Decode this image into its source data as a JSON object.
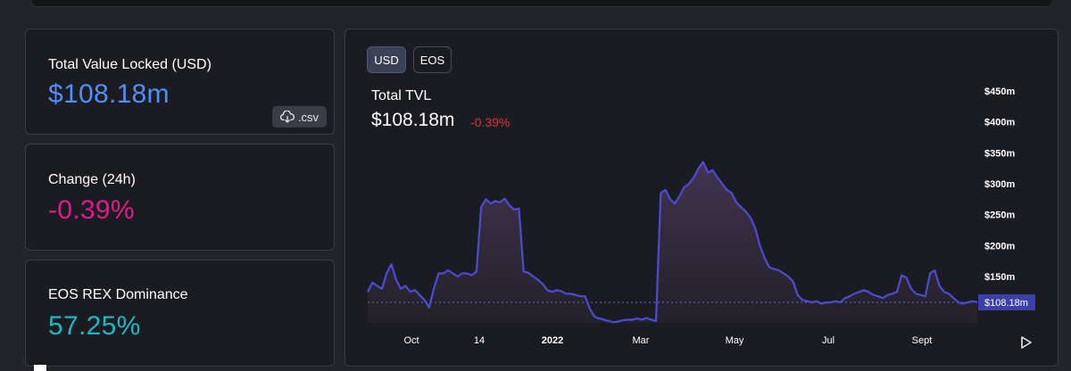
{
  "cards": {
    "tvl": {
      "label": "Total Value Locked (USD)",
      "value": "$108.18m",
      "csv_label": ".csv",
      "color": "#4f8ff7"
    },
    "change": {
      "label": "Change (24h)",
      "value": "-0.39%",
      "color": "#e11a8c"
    },
    "dominance": {
      "label": "EOS REX Dominance",
      "value": "57.25%",
      "color": "#1cb8c4"
    }
  },
  "chart_panel": {
    "toggles": [
      "USD",
      "EOS"
    ],
    "active_toggle": "USD",
    "title": "Total TVL",
    "current_value": "$108.18m",
    "change": "-0.39%",
    "current_tag": "$108.18m"
  },
  "chart_data": {
    "type": "area",
    "title": "Total TVL",
    "xlabel": "",
    "ylabel": "",
    "y_unit": "USD millions",
    "ylim": [
      70,
      480
    ],
    "y_ticks": [
      150,
      200,
      250,
      300,
      350,
      400,
      450
    ],
    "y_tick_labels": [
      "$150m",
      "$200m",
      "$250m",
      "$300m",
      "$350m",
      "$400m",
      "$450m"
    ],
    "x_tick_labels": [
      "Oct",
      "14",
      "2022",
      "Mar",
      "May",
      "Jul",
      "Sept"
    ],
    "current_value": 108.18,
    "line_color": "#4b4bd6",
    "grid": false,
    "series": [
      {
        "values": [
          125,
          140,
          135,
          130,
          155,
          170,
          145,
          130,
          135,
          125,
          128,
          120,
          112,
          100,
          130,
          155,
          155,
          160,
          155,
          150,
          155,
          155,
          152,
          158,
          262,
          275,
          268,
          272,
          270,
          276,
          265,
          258,
          260,
          158,
          156,
          150,
          145,
          138,
          128,
          125,
          128,
          126,
          122,
          122,
          120,
          118,
          118,
          98,
          85,
          82,
          80,
          78,
          76,
          77,
          79,
          80,
          80,
          82,
          80,
          83,
          80,
          78,
          285,
          290,
          275,
          268,
          280,
          295,
          300,
          310,
          325,
          335,
          318,
          322,
          310,
          300,
          290,
          285,
          270,
          262,
          255,
          245,
          228,
          200,
          180,
          165,
          162,
          160,
          155,
          150,
          142,
          120,
          112,
          110,
          108,
          110,
          106,
          108,
          108,
          110,
          108,
          115,
          118,
          122,
          125,
          128,
          125,
          120,
          118,
          115,
          120,
          122,
          125,
          152,
          148,
          130,
          122,
          120,
          118,
          155,
          160,
          135,
          125,
          122,
          115,
          108,
          106,
          108,
          110,
          108.18
        ]
      }
    ]
  }
}
